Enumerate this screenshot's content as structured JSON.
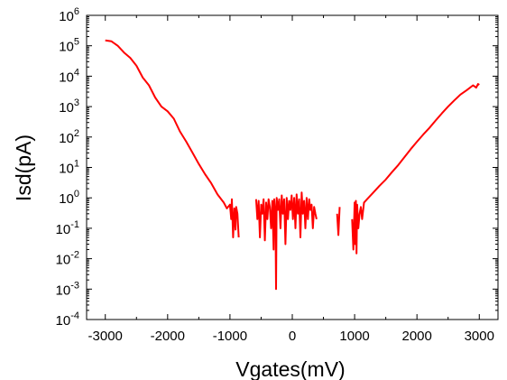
{
  "chart_data": {
    "type": "line",
    "xlabel": "Vgates(mV)",
    "ylabel": "Isd(pA)",
    "xlim": [
      -3300,
      3300
    ],
    "ylim": [
      0.0001,
      1000000
    ],
    "yscale": "log",
    "grid": false,
    "legend": "none",
    "x_ticks": [
      -3000,
      -2000,
      -1000,
      0,
      1000,
      2000,
      3000
    ],
    "x_tick_labels": [
      "-3000",
      "-2000",
      "-1000",
      "0",
      "1000",
      "2000",
      "3000"
    ],
    "y_ticks": [
      {
        "value": 0.0001,
        "base": "10",
        "exp": "-4"
      },
      {
        "value": 0.001,
        "base": "10",
        "exp": "-3"
      },
      {
        "value": 0.01,
        "base": "10",
        "exp": "-2"
      },
      {
        "value": 0.1,
        "base": "10",
        "exp": "-1"
      },
      {
        "value": 1,
        "base": "10",
        "exp": "0"
      },
      {
        "value": 10,
        "base": "10",
        "exp": "1"
      },
      {
        "value": 100,
        "base": "10",
        "exp": "2"
      },
      {
        "value": 1000,
        "base": "10",
        "exp": "3"
      },
      {
        "value": 10000,
        "base": "10",
        "exp": "4"
      },
      {
        "value": 100000,
        "base": "10",
        "exp": "5"
      },
      {
        "value": 1000000,
        "base": "10",
        "exp": "6"
      }
    ],
    "series": [
      {
        "color": "#ff0000",
        "segments": [
          [
            [
              -3000,
              150000
            ],
            [
              -2900,
              140000
            ],
            [
              -2800,
              100000
            ],
            [
              -2700,
              60000
            ],
            [
              -2600,
              40000
            ],
            [
              -2500,
              22000
            ],
            [
              -2400,
              9000
            ],
            [
              -2300,
              5000
            ],
            [
              -2200,
              2000
            ],
            [
              -2100,
              1000
            ],
            [
              -2000,
              700
            ],
            [
              -1900,
              400
            ],
            [
              -1800,
              150
            ],
            [
              -1700,
              70
            ],
            [
              -1600,
              30
            ],
            [
              -1500,
              13
            ],
            [
              -1400,
              6
            ],
            [
              -1300,
              3
            ],
            [
              -1200,
              1.3
            ],
            [
              -1100,
              0.7
            ],
            [
              -1050,
              0.45
            ],
            [
              -1000,
              0.6
            ],
            [
              -980,
              0.2
            ],
            [
              -970,
              0.9
            ],
            [
              -950,
              0.05
            ],
            [
              -930,
              0.45
            ],
            [
              -910,
              0.09
            ],
            [
              -900,
              0.5
            ],
            [
              -880,
              0.3
            ],
            [
              -860,
              0.05
            ]
          ],
          [
            [
              -580,
              0.9
            ],
            [
              -560,
              0.2
            ],
            [
              -540,
              0.8
            ],
            [
              -520,
              0.05
            ],
            [
              -500,
              0.6
            ],
            [
              -480,
              0.3
            ],
            [
              -460,
              0.9
            ],
            [
              -440,
              0.04
            ],
            [
              -420,
              0.7
            ],
            [
              -400,
              0.2
            ],
            [
              -380,
              0.9
            ],
            [
              -360,
              0.5
            ],
            [
              -340,
              0.1
            ],
            [
              -320,
              0.8
            ],
            [
              -300,
              0.02
            ],
            [
              -290,
              0.9
            ],
            [
              -270,
              0.3
            ],
            [
              -260,
              0.001
            ],
            [
              -250,
              1.0
            ],
            [
              -230,
              0.4
            ],
            [
              -210,
              0.9
            ],
            [
              -190,
              0.1
            ],
            [
              -170,
              1.2
            ],
            [
              -150,
              0.3
            ],
            [
              -130,
              0.9
            ],
            [
              -110,
              0.03
            ],
            [
              -90,
              1.0
            ],
            [
              -70,
              0.2
            ],
            [
              -50,
              0.8
            ],
            [
              -30,
              0.4
            ],
            [
              -10,
              1.2
            ],
            [
              10,
              0.2
            ],
            [
              30,
              1.0
            ],
            [
              50,
              0.1
            ],
            [
              70,
              1.3
            ],
            [
              90,
              0.3
            ],
            [
              110,
              0.9
            ],
            [
              130,
              0.05
            ],
            [
              150,
              1.5
            ],
            [
              170,
              0.3
            ],
            [
              190,
              0.8
            ],
            [
              210,
              0.1
            ],
            [
              230,
              1.0
            ],
            [
              250,
              0.2
            ],
            [
              270,
              0.9
            ],
            [
              290,
              0.4
            ],
            [
              310,
              0.6
            ],
            [
              330,
              0.1
            ],
            [
              350,
              0.5
            ],
            [
              370,
              0.3
            ],
            [
              390,
              0.2
            ]
          ],
          [
            [
              720,
              0.3
            ],
            [
              740,
              0.06
            ],
            [
              760,
              0.5
            ]
          ],
          [
            [
              960,
              0.2
            ],
            [
              980,
              0.02
            ],
            [
              1000,
              0.7
            ],
            [
              1010,
              0.03
            ],
            [
              1020,
              0.8
            ],
            [
              1030,
              0.015
            ],
            [
              1040,
              0.6
            ],
            [
              1060,
              0.1
            ],
            [
              1080,
              0.3
            ],
            [
              1100,
              0.5
            ],
            [
              1120,
              0.2
            ],
            [
              1150,
              0.7
            ],
            [
              1200,
              0.9
            ],
            [
              1300,
              1.5
            ],
            [
              1400,
              2.5
            ],
            [
              1500,
              4
            ],
            [
              1600,
              7
            ],
            [
              1700,
              12
            ],
            [
              1800,
              22
            ],
            [
              1900,
              40
            ],
            [
              2000,
              70
            ],
            [
              2100,
              120
            ],
            [
              2200,
              200
            ],
            [
              2300,
              350
            ],
            [
              2400,
              600
            ],
            [
              2500,
              1000
            ],
            [
              2600,
              1600
            ],
            [
              2700,
              2500
            ],
            [
              2800,
              3500
            ],
            [
              2900,
              5000
            ],
            [
              2950,
              4200
            ],
            [
              2980,
              5500
            ],
            [
              3000,
              5200
            ]
          ]
        ]
      }
    ]
  }
}
